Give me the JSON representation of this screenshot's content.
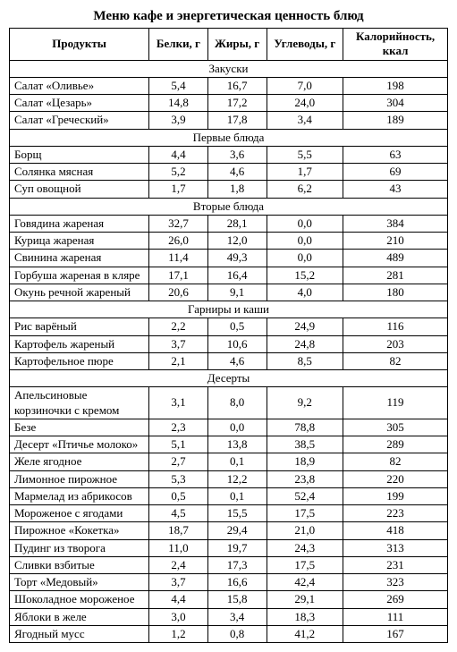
{
  "title": "Меню кафе и энергетическая ценность блюд",
  "headers": {
    "name": "Продукты",
    "protein": "Белки, г",
    "fat": "Жиры, г",
    "carbs": "Углеводы, г",
    "kcal": "Калорийность, ккал"
  },
  "sections": [
    {
      "title": "Закуски",
      "rows": [
        {
          "name": "Салат «Оливье»",
          "p": "5,4",
          "f": "16,7",
          "c": "7,0",
          "k": "198"
        },
        {
          "name": "Салат «Цезарь»",
          "p": "14,8",
          "f": "17,2",
          "c": "24,0",
          "k": "304"
        },
        {
          "name": "Салат «Греческий»",
          "p": "3,9",
          "f": "17,8",
          "c": "3,4",
          "k": "189"
        }
      ]
    },
    {
      "title": "Первые блюда",
      "rows": [
        {
          "name": "Борщ",
          "p": "4,4",
          "f": "3,6",
          "c": "5,5",
          "k": "63"
        },
        {
          "name": "Солянка мясная",
          "p": "5,2",
          "f": "4,6",
          "c": "1,7",
          "k": "69"
        },
        {
          "name": "Суп овощной",
          "p": "1,7",
          "f": "1,8",
          "c": "6,2",
          "k": "43"
        }
      ]
    },
    {
      "title": "Вторые блюда",
      "rows": [
        {
          "name": "Говядина жареная",
          "p": "32,7",
          "f": "28,1",
          "c": "0,0",
          "k": "384"
        },
        {
          "name": "Курица жареная",
          "p": "26,0",
          "f": "12,0",
          "c": "0,0",
          "k": "210"
        },
        {
          "name": "Свинина жареная",
          "p": "11,4",
          "f": "49,3",
          "c": "0,0",
          "k": "489"
        },
        {
          "name": "Горбуша жареная в кляре",
          "p": "17,1",
          "f": "16,4",
          "c": "15,2",
          "k": "281"
        },
        {
          "name": "Окунь речной жареный",
          "p": "20,6",
          "f": "9,1",
          "c": "4,0",
          "k": "180"
        }
      ]
    },
    {
      "title": "Гарниры и каши",
      "rows": [
        {
          "name": "Рис варёный",
          "p": "2,2",
          "f": "0,5",
          "c": "24,9",
          "k": "116"
        },
        {
          "name": "Картофель жареный",
          "p": "3,7",
          "f": "10,6",
          "c": "24,8",
          "k": "203"
        },
        {
          "name": "Картофельное пюре",
          "p": "2,1",
          "f": "4,6",
          "c": "8,5",
          "k": "82"
        }
      ]
    },
    {
      "title": "Десерты",
      "rows": [
        {
          "name": "Апельсиновые корзиночки с кремом",
          "p": "3,1",
          "f": "8,0",
          "c": "9,2",
          "k": "119"
        },
        {
          "name": "Безе",
          "p": "2,3",
          "f": "0,0",
          "c": "78,8",
          "k": "305"
        },
        {
          "name": "Десерт «Птичье молоко»",
          "p": "5,1",
          "f": "13,8",
          "c": "38,5",
          "k": "289"
        },
        {
          "name": "Желе ягодное",
          "p": "2,7",
          "f": "0,1",
          "c": "18,9",
          "k": "82"
        },
        {
          "name": "Лимонное пирожное",
          "p": "5,3",
          "f": "12,2",
          "c": "23,8",
          "k": "220"
        },
        {
          "name": "Мармелад из абрикосов",
          "p": "0,5",
          "f": "0,1",
          "c": "52,4",
          "k": "199"
        },
        {
          "name": "Мороженое с ягодами",
          "p": "4,5",
          "f": "15,5",
          "c": "17,5",
          "k": "223"
        },
        {
          "name": "Пирожное «Кокетка»",
          "p": "18,7",
          "f": "29,4",
          "c": "21,0",
          "k": "418"
        },
        {
          "name": "Пудинг из творога",
          "p": "11,0",
          "f": "19,7",
          "c": "24,3",
          "k": "313"
        },
        {
          "name": "Сливки взбитые",
          "p": "2,4",
          "f": "17,3",
          "c": "17,5",
          "k": "231"
        },
        {
          "name": "Торт «Медовый»",
          "p": "3,7",
          "f": "16,6",
          "c": "42,4",
          "k": "323"
        },
        {
          "name": "Шоколадное мороженое",
          "p": "4,4",
          "f": "15,8",
          "c": "29,1",
          "k": "269"
        },
        {
          "name": "Яблоки в желе",
          "p": "3,0",
          "f": "3,4",
          "c": "18,3",
          "k": "111"
        },
        {
          "name": "Ягодный мусс",
          "p": "1,2",
          "f": "0,8",
          "c": "41,2",
          "k": "167"
        }
      ]
    }
  ]
}
